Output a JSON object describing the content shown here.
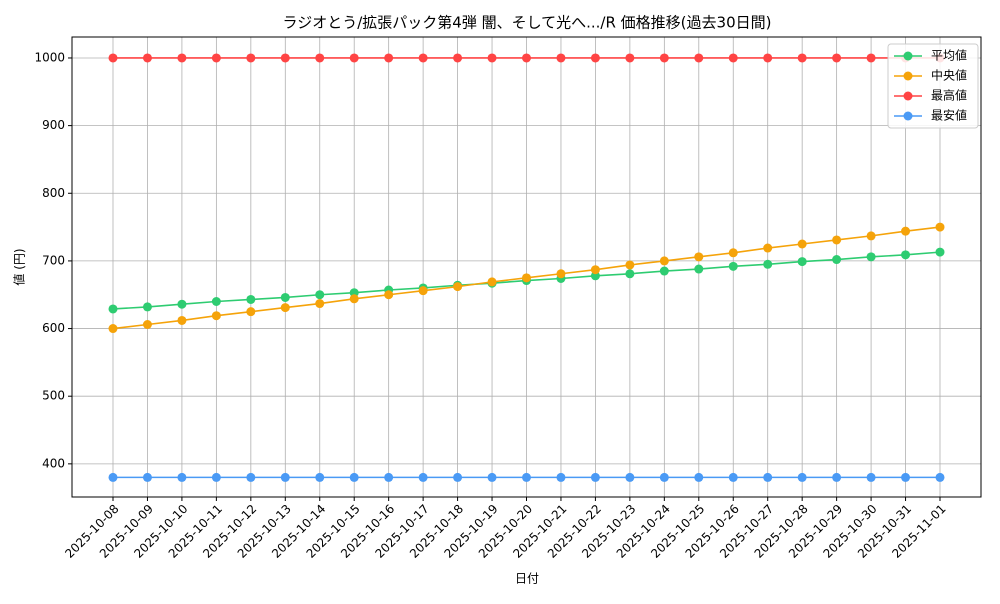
{
  "chart_data": {
    "type": "line",
    "title": "ラジオとう/拡張パック第4弾 闇、そして光へ.../R 価格推移(過去30日間)",
    "x_label": "日付",
    "y_label": "値 (円)",
    "categories": [
      "2025-10-08",
      "2025-10-09",
      "2025-10-10",
      "2025-10-11",
      "2025-10-12",
      "2025-10-13",
      "2025-10-14",
      "2025-10-15",
      "2025-10-16",
      "2025-10-17",
      "2025-10-18",
      "2025-10-19",
      "2025-10-20",
      "2025-10-21",
      "2025-10-22",
      "2025-10-23",
      "2025-10-24",
      "2025-10-25",
      "2025-10-26",
      "2025-10-27",
      "2025-10-28",
      "2025-10-29",
      "2025-10-30",
      "2025-10-31",
      "2025-11-01"
    ],
    "series": [
      {
        "name": "平均値",
        "color": "#2ecc71",
        "values": [
          629,
          632,
          636,
          640,
          643,
          646,
          650,
          653,
          657,
          660,
          664,
          667,
          671,
          674,
          678,
          681,
          685,
          688,
          692,
          695,
          699,
          702,
          706,
          709,
          713
        ]
      },
      {
        "name": "中央値",
        "color": "#f5a30a",
        "values": [
          600,
          606,
          612,
          619,
          625,
          631,
          637,
          644,
          650,
          656,
          662,
          669,
          675,
          681,
          687,
          694,
          700,
          706,
          712,
          719,
          725,
          731,
          737,
          744,
          750
        ]
      },
      {
        "name": "最高値",
        "color": "#ff4444",
        "values": [
          1000,
          1000,
          1000,
          1000,
          1000,
          1000,
          1000,
          1000,
          1000,
          1000,
          1000,
          1000,
          1000,
          1000,
          1000,
          1000,
          1000,
          1000,
          1000,
          1000,
          1000,
          1000,
          1000,
          1000,
          1000
        ]
      },
      {
        "name": "最安値",
        "color": "#4a9af5",
        "values": [
          380,
          380,
          380,
          380,
          380,
          380,
          380,
          380,
          380,
          380,
          380,
          380,
          380,
          380,
          380,
          380,
          380,
          380,
          380,
          380,
          380,
          380,
          380,
          380,
          380
        ]
      }
    ],
    "ylim": [
      351,
      1031
    ],
    "yticks": [
      400,
      500,
      600,
      700,
      800,
      900,
      1000
    ],
    "grid": true,
    "legend": "upper right"
  }
}
